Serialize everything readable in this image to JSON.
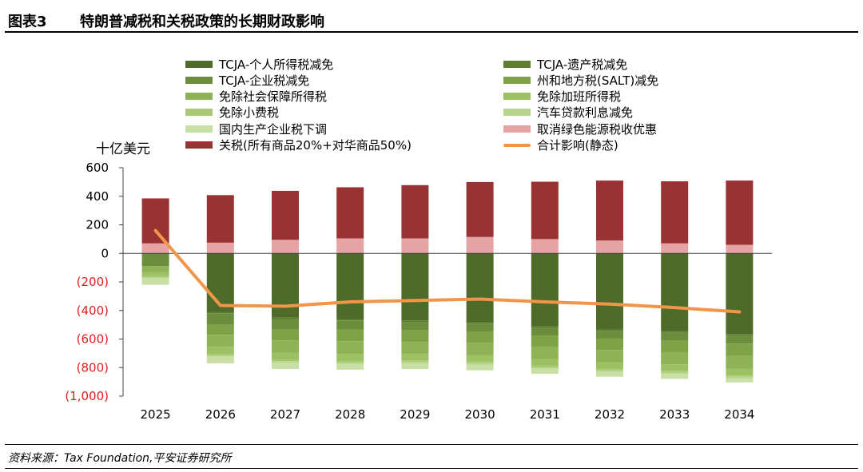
{
  "header": {
    "number": "图表3",
    "title": "特朗普减税和关税政策的长期财政影响"
  },
  "footer": {
    "source": "资料来源：Tax Foundation,平安证券研究所"
  },
  "chart_data": {
    "type": "bar",
    "stacked": true,
    "unit_label": "十亿美元",
    "categories": [
      "2025",
      "2026",
      "2027",
      "2028",
      "2029",
      "2030",
      "2031",
      "2032",
      "2033",
      "2034"
    ],
    "ylim": [
      -1000,
      600
    ],
    "yticks": [
      {
        "value": 600,
        "label": "600",
        "negative": false
      },
      {
        "value": 400,
        "label": "400",
        "negative": false
      },
      {
        "value": 200,
        "label": "200",
        "negative": false
      },
      {
        "value": 0,
        "label": "0",
        "negative": false
      },
      {
        "value": -200,
        "label": "(200)",
        "negative": true
      },
      {
        "value": -400,
        "label": "(400)",
        "negative": true
      },
      {
        "value": -600,
        "label": "(600)",
        "negative": true
      },
      {
        "value": -800,
        "label": "(800)",
        "negative": true
      },
      {
        "value": -1000,
        "label": "(1,000)",
        "negative": true
      }
    ],
    "negative_tick_color": "#e02020",
    "series": [
      {
        "name": "TCJA-个人所得税减免",
        "color": "#4f6b2a",
        "values": [
          0,
          -410,
          -450,
          -460,
          -470,
          -480,
          -510,
          -530,
          -545,
          -565
        ]
      },
      {
        "name": "TCJA-遗产税减免",
        "color": "#5e7d32",
        "values": [
          0,
          -10,
          -10,
          -10,
          -10,
          -12,
          -12,
          -12,
          -12,
          -12
        ]
      },
      {
        "name": "TCJA-企业税减免",
        "color": "#6b8e3c",
        "values": [
          -90,
          -80,
          -70,
          -65,
          -60,
          -55,
          -55,
          -55,
          -55,
          -55
        ]
      },
      {
        "name": "州和地方税(SALT)减免",
        "color": "#7ea346",
        "values": [
          0,
          -70,
          -80,
          -80,
          -80,
          -80,
          -80,
          -80,
          -80,
          -85
        ]
      },
      {
        "name": "免除社会保障所得税",
        "color": "#8eb356",
        "values": [
          -40,
          -85,
          -85,
          -90,
          -85,
          -85,
          -85,
          -85,
          -85,
          -90
        ]
      },
      {
        "name": "免除加班所得税",
        "color": "#9cc163",
        "values": [
          -30,
          -50,
          -50,
          -50,
          -45,
          -45,
          -45,
          -45,
          -45,
          -45
        ]
      },
      {
        "name": "免除小费税",
        "color": "#a8c971",
        "values": [
          -10,
          -10,
          -10,
          -10,
          -10,
          -12,
          -12,
          -12,
          -12,
          -12
        ]
      },
      {
        "name": "汽车贷款利息减免",
        "color": "#b8d48a",
        "values": [
          0,
          -10,
          -10,
          -10,
          -10,
          -10,
          -10,
          -10,
          -10,
          -10
        ]
      },
      {
        "name": "国内生产企业税下调",
        "color": "#c8dfa6",
        "values": [
          -50,
          -45,
          -45,
          -40,
          -40,
          -40,
          -35,
          -35,
          -35,
          -30
        ]
      },
      {
        "name": "取消绿色能源税收优惠",
        "color": "#e6a3a3",
        "values": [
          70,
          75,
          95,
          105,
          105,
          115,
          100,
          90,
          70,
          60
        ]
      },
      {
        "name": "关税(所有商品20%+对华商品50%)",
        "color": "#993333",
        "values": [
          315,
          333,
          343,
          358,
          373,
          385,
          402,
          420,
          435,
          450
        ]
      }
    ],
    "line": {
      "name": "合计影响(静态)",
      "color": "#f0964a",
      "values": [
        160,
        -365,
        -370,
        -340,
        -330,
        -320,
        -340,
        -355,
        -380,
        -410
      ]
    }
  }
}
